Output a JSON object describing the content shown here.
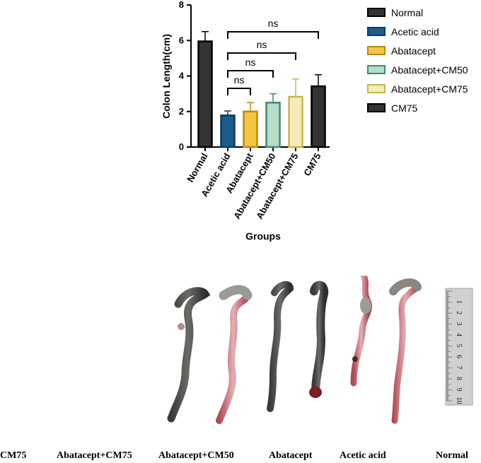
{
  "chart_data": {
    "type": "bar",
    "categories": [
      "Normal",
      "Acetic acid",
      "Abatacept",
      "Abatacept+CM50",
      "Abatacept+CM75",
      "CM75"
    ],
    "values": [
      5.95,
      1.78,
      2.0,
      2.5,
      2.83,
      3.42
    ],
    "errors": [
      0.55,
      0.25,
      0.5,
      0.5,
      1.0,
      0.65
    ],
    "colors": [
      "#333333",
      "#1d5c8a",
      "#f5c542",
      "#b7dcc8",
      "#f3ecb8",
      "#333333"
    ],
    "edge_colors": [
      "#000000",
      "#0c3a5e",
      "#b58b0c",
      "#3f8a6e",
      "#c7b54a",
      "#000000"
    ],
    "xlabel": "Groups",
    "ylabel": "Colon Length(cm)",
    "ylim": [
      0,
      8
    ],
    "yticks": [
      "0",
      "2",
      "4",
      "6",
      "8"
    ],
    "grid": false,
    "legend_position": "right",
    "legend": [
      {
        "name": "Normal",
        "color": "#333333"
      },
      {
        "name": "Acetic acid",
        "color": "#1d5c8a"
      },
      {
        "name": "Abatacept",
        "color": "#f5c542"
      },
      {
        "name": "Abatacept+CM50",
        "color": "#b7dcc8"
      },
      {
        "name": "Abatacept+CM75",
        "color": "#f3ecb8"
      },
      {
        "name": "CM75",
        "color": "#333333"
      }
    ],
    "significance": [
      {
        "from": "Acetic acid",
        "to": "CM75",
        "label": "ns"
      },
      {
        "from": "Acetic acid",
        "to": "Abatacept+CM75",
        "label": "ns"
      },
      {
        "from": "Acetic acid",
        "to": "Abatacept+CM50",
        "label": "ns"
      },
      {
        "from": "Acetic acid",
        "to": "Abatacept",
        "label": "ns"
      }
    ]
  },
  "photo": {
    "captions": [
      "CM75",
      "Abatacept+CM75",
      "Abatacept+CM50",
      "Abatacept",
      "Acetic acid",
      "Normal"
    ],
    "ruler_numbers": [
      "1",
      "2",
      "3",
      "4",
      "5",
      "6",
      "7",
      "8",
      "9",
      "10"
    ]
  }
}
